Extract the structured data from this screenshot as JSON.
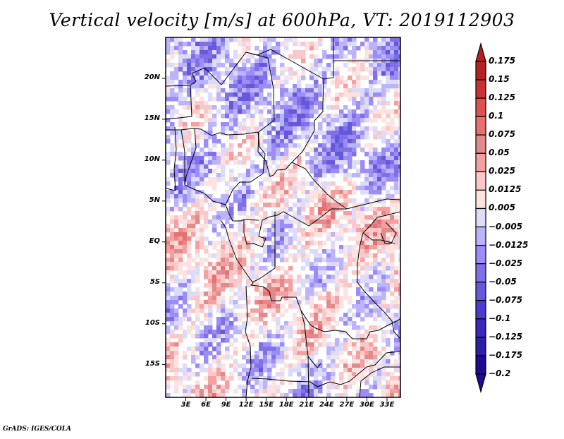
{
  "title": "Vertical velocity [m/s] at 600hPa, VT: 2019112903",
  "footer": "GrADS: IGES/COLA",
  "map": {
    "variable": "Vertical velocity",
    "units": "m/s",
    "level": "600hPa",
    "valid_time": "2019112903",
    "region": "Central Africa",
    "lon_range": [
      0,
      35
    ],
    "lat_range": [
      -19,
      25
    ],
    "lat_ticks": [
      {
        "value": 20,
        "label": "20N"
      },
      {
        "value": 15,
        "label": "15N"
      },
      {
        "value": 10,
        "label": "10N"
      },
      {
        "value": 5,
        "label": "5N"
      },
      {
        "value": 0,
        "label": "EQ"
      },
      {
        "value": -5,
        "label": "5S"
      },
      {
        "value": -10,
        "label": "10S"
      },
      {
        "value": -15,
        "label": "15S"
      }
    ],
    "lon_ticks": [
      {
        "value": 3,
        "label": "3E"
      },
      {
        "value": 6,
        "label": "6E"
      },
      {
        "value": 9,
        "label": "9E"
      },
      {
        "value": 12,
        "label": "12E"
      },
      {
        "value": 15,
        "label": "15E"
      },
      {
        "value": 18,
        "label": "18E"
      },
      {
        "value": 21,
        "label": "21E"
      },
      {
        "value": 24,
        "label": "24E"
      },
      {
        "value": 27,
        "label": "27E"
      },
      {
        "value": 30,
        "label": "30E"
      },
      {
        "value": 33,
        "label": "33E"
      }
    ]
  },
  "colorbar": {
    "levels": [
      {
        "label": "0.175",
        "color": "#b22222"
      },
      {
        "label": "0.15",
        "color": "#c83232"
      },
      {
        "label": "0.125",
        "color": "#e05050"
      },
      {
        "label": "0.1",
        "color": "#e87070"
      },
      {
        "label": "0.075",
        "color": "#e08a8a"
      },
      {
        "label": "0.05",
        "color": "#f4a0a0"
      },
      {
        "label": "0.025",
        "color": "#fac8c8"
      },
      {
        "label": "0.0125",
        "color": "#fde2e2"
      },
      {
        "label": "0.005",
        "color": "#ffffff"
      },
      {
        "label": "−0.005",
        "color": "#dcdcfa"
      },
      {
        "label": "−0.0125",
        "color": "#bcb4fa"
      },
      {
        "label": "−0.025",
        "color": "#9c8cf8"
      },
      {
        "label": "−0.05",
        "color": "#8070e8"
      },
      {
        "label": "−0.075",
        "color": "#6658d8"
      },
      {
        "label": "−0.1",
        "color": "#4a3ccc"
      },
      {
        "label": "−0.125",
        "color": "#3a28b8"
      },
      {
        "label": "−0.175",
        "color": "#2e1ea4"
      },
      {
        "label": "−0.2",
        "color": "#200a90"
      }
    ],
    "top_arrow_color": "#b22222",
    "bottom_arrow_color": "#1e0a96"
  }
}
